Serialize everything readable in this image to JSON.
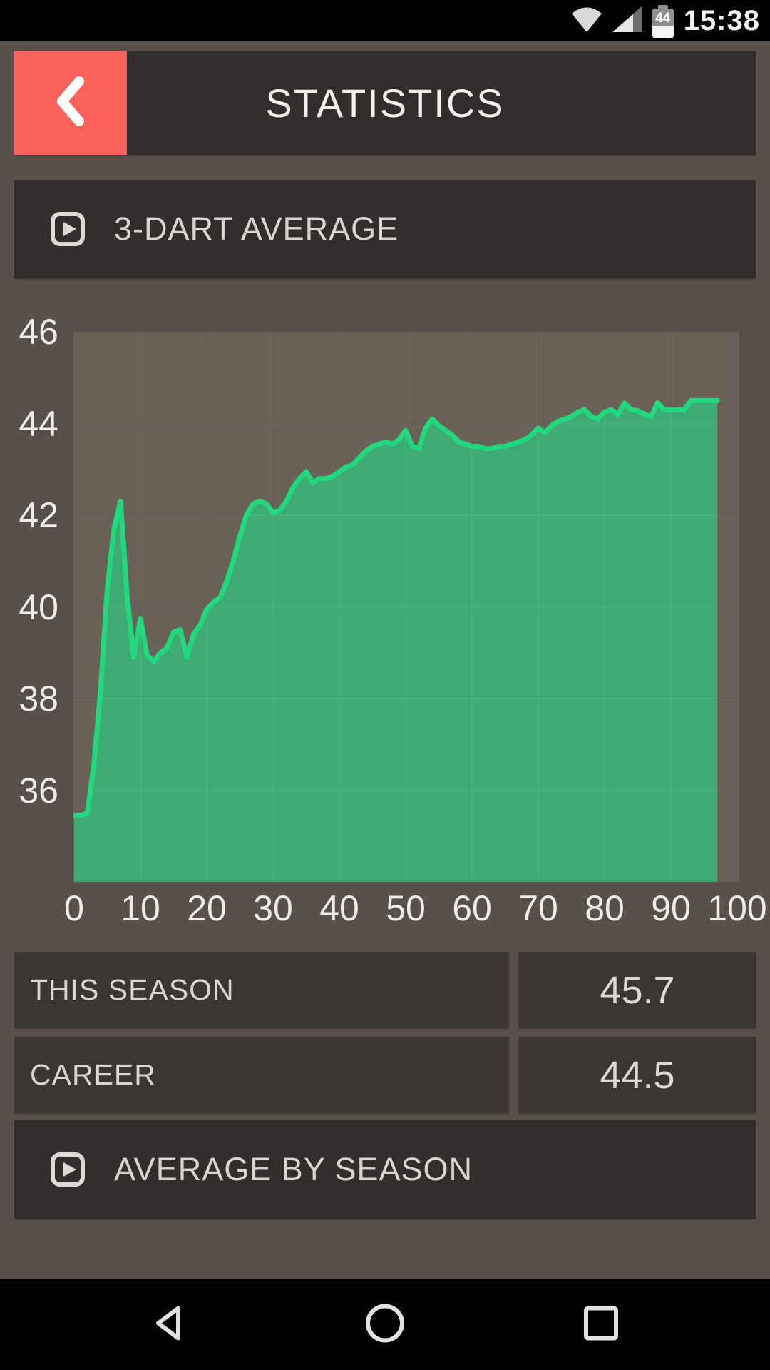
{
  "status_bar": {
    "time": "15:38",
    "battery_percent": "44",
    "icons": [
      "wifi-icon",
      "cell-signal-icon",
      "battery-icon"
    ]
  },
  "header": {
    "title": "STATISTICS",
    "back_button_color": "#fa625a"
  },
  "sections": {
    "chart_section": {
      "icon": "slideshow-icon",
      "label": "3-DART AVERAGE"
    },
    "season_section": {
      "icon": "slideshow-icon",
      "label": "AVERAGE BY SEASON"
    }
  },
  "stats": [
    {
      "label": "THIS SEASON",
      "value": "45.7"
    },
    {
      "label": "CAREER",
      "value": "44.5"
    }
  ],
  "chart_data": {
    "type": "area",
    "title": "3-DART AVERAGE",
    "xlabel": "",
    "ylabel": "",
    "x_start": 0,
    "x_step": 1,
    "values": [
      35.45,
      35.45,
      35.5,
      36.6,
      38.2,
      40.4,
      41.7,
      42.3,
      40.2,
      38.9,
      39.75,
      38.95,
      38.8,
      39.0,
      39.1,
      39.45,
      39.5,
      38.9,
      39.4,
      39.6,
      39.95,
      40.1,
      40.2,
      40.55,
      41.0,
      41.55,
      42.0,
      42.25,
      42.3,
      42.25,
      42.05,
      42.1,
      42.3,
      42.6,
      42.8,
      42.95,
      42.7,
      42.8,
      42.8,
      42.85,
      42.95,
      43.05,
      43.1,
      43.25,
      43.4,
      43.5,
      43.55,
      43.6,
      43.55,
      43.65,
      43.85,
      43.5,
      43.45,
      43.9,
      44.1,
      43.95,
      43.85,
      43.75,
      43.6,
      43.55,
      43.5,
      43.5,
      43.45,
      43.45,
      43.5,
      43.5,
      43.55,
      43.6,
      43.65,
      43.75,
      43.9,
      43.8,
      43.95,
      44.05,
      44.1,
      44.15,
      44.25,
      44.3,
      44.15,
      44.1,
      44.25,
      44.3,
      44.2,
      44.45,
      44.3,
      44.28,
      44.2,
      44.15,
      44.45,
      44.3,
      44.3,
      44.3,
      44.3,
      44.5,
      44.5,
      44.5,
      44.5,
      44.5
    ],
    "x_ticks": [
      0,
      10,
      20,
      30,
      40,
      50,
      60,
      70,
      80,
      90,
      100
    ],
    "y_ticks": [
      46,
      44,
      42,
      40,
      38,
      36
    ],
    "xlim": [
      0,
      100.4
    ],
    "ylim": [
      34,
      46
    ],
    "grid": true,
    "legend": "none",
    "line_color": "#22d87d",
    "fill_color": "#3dab73"
  },
  "colors": {
    "page_bg": "#57504b",
    "bar_bg": "#332e2d",
    "row_bg": "#3b3634",
    "accent_red": "#fa625a",
    "plot_bg": "#6a6159",
    "gridline": "#5d544e",
    "line_green": "#22d87d",
    "fill_green": "#3dab73",
    "text_light": "#d9d6d2"
  },
  "nav_bar": {
    "icons": [
      "back-triangle-icon",
      "home-circle-icon",
      "recents-square-icon"
    ]
  }
}
